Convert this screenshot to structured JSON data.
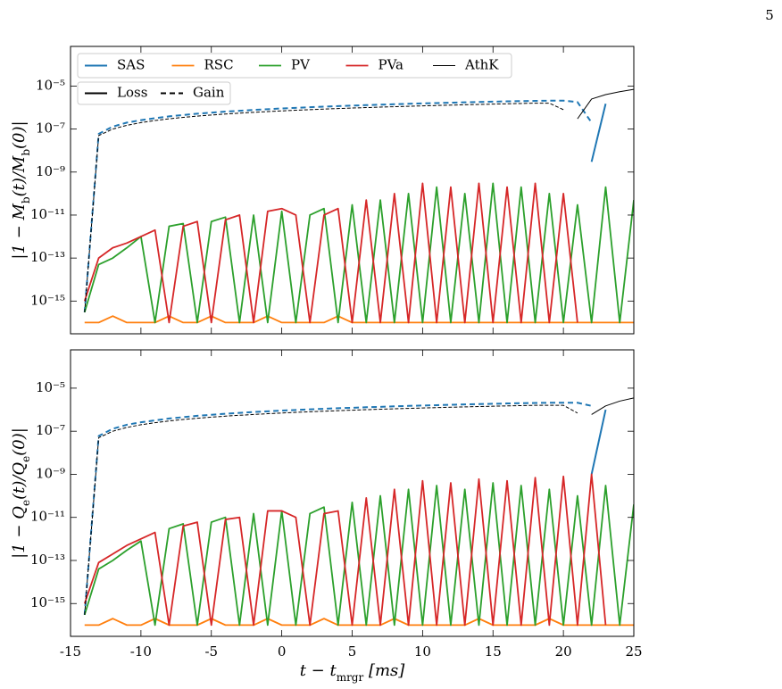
{
  "page_number": "5",
  "chart_data": [
    {
      "type": "line",
      "log_y": true,
      "xlim": [
        -15,
        25
      ],
      "xticks": [
        -15,
        -10,
        -5,
        0,
        5,
        10,
        15,
        20,
        25
      ],
      "show_xtick_labels": false,
      "ylim": [
        3e-17,
        0.0007
      ],
      "yticks": [
        {
          "value": 1e-15,
          "label": "10⁻¹⁵"
        },
        {
          "value": 1e-13,
          "label": "10⁻¹³"
        },
        {
          "value": 1e-11,
          "label": "10⁻¹¹"
        },
        {
          "value": 1e-09,
          "label": "10⁻⁹"
        },
        {
          "value": 1e-07,
          "label": "10⁻⁷"
        },
        {
          "value": 1e-05,
          "label": "10⁻⁵"
        }
      ],
      "ylabel": [
        "|1 − M",
        "b",
        "(t)/M",
        "b",
        "(0)|"
      ],
      "legend": "upper left",
      "style_legend": [
        {
          "name": "Loss",
          "dash": "solid"
        },
        {
          "name": "Gain",
          "dash": "dashed"
        }
      ],
      "x": [
        -14,
        -13,
        -12,
        -11,
        -10,
        -9,
        -8,
        -7,
        -6,
        -5,
        -4,
        -3,
        -2,
        -1,
        0,
        1,
        2,
        3,
        4,
        5,
        6,
        7,
        8,
        9,
        10,
        11,
        12,
        13,
        14,
        15,
        16,
        17,
        18,
        19,
        20,
        21,
        22,
        23,
        24,
        25
      ],
      "series": [
        {
          "name": "SAS",
          "color": "#1f77b4",
          "width": 2,
          "values": [
            3e-16,
            6e-08,
            1.3e-07,
            2e-07,
            2.6e-07,
            3.2e-07,
            3.9e-07,
            4.5e-07,
            5.2e-07,
            5.8e-07,
            6.5e-07,
            7.1e-07,
            7.8e-07,
            8.4e-07,
            9.1e-07,
            9.7e-07,
            1.04e-06,
            1.1e-06,
            1.17e-06,
            1.23e-06,
            1.3e-06,
            1.36e-06,
            1.43e-06,
            1.5e-06,
            1.56e-06,
            1.62e-06,
            1.69e-06,
            1.75e-06,
            1.82e-06,
            1.88e-06,
            1.95e-06,
            2e-06,
            2.05e-06,
            2.1e-06,
            2.1e-06,
            1.8e-06,
            2e-07,
            null,
            null,
            null
          ],
          "loss_values": [
            null,
            null,
            null,
            null,
            null,
            null,
            null,
            null,
            null,
            null,
            null,
            null,
            null,
            null,
            null,
            null,
            null,
            null,
            null,
            null,
            null,
            null,
            null,
            null,
            null,
            null,
            null,
            null,
            null,
            null,
            null,
            null,
            null,
            null,
            null,
            null,
            3e-09,
            1.5e-06,
            null,
            null
          ]
        },
        {
          "name": "RSC",
          "color": "#ff7f0e",
          "width": 1.8,
          "values": [
            1e-16,
            1e-16,
            2e-16,
            1e-16,
            1e-16,
            1e-16,
            2e-16,
            1e-16,
            1e-16,
            2e-16,
            1e-16,
            1e-16,
            1e-16,
            2e-16,
            1e-16,
            1e-16,
            1e-16,
            1e-16,
            2e-16,
            1e-16,
            1e-16,
            1e-16,
            1e-16,
            1e-16,
            1e-16,
            1e-16,
            1e-16,
            1e-16,
            1e-16,
            1e-16,
            1e-16,
            1e-16,
            1e-16,
            1e-16,
            1e-16,
            1e-16,
            1e-16,
            1e-16,
            1e-16,
            1e-16
          ]
        },
        {
          "name": "PV",
          "color": "#2ca02c",
          "width": 1.8,
          "values": [
            3e-16,
            5e-14,
            1e-13,
            3e-13,
            1e-12,
            1e-16,
            3e-12,
            4e-12,
            1e-16,
            5e-12,
            8e-12,
            1e-16,
            1e-11,
            1e-16,
            1.5e-11,
            1e-16,
            1e-11,
            2e-11,
            1e-16,
            3e-11,
            1e-16,
            5e-11,
            1e-16,
            1e-10,
            1e-16,
            2e-10,
            1e-16,
            1e-10,
            1e-16,
            3e-10,
            1e-16,
            2e-10,
            1e-16,
            1e-10,
            1e-16,
            3e-11,
            1e-16,
            2e-10,
            1e-16,
            5e-11
          ]
        },
        {
          "name": "PVa",
          "color": "#d62728",
          "width": 1.8,
          "values": [
            1e-15,
            1e-13,
            3e-13,
            5e-13,
            1e-12,
            2e-12,
            1e-16,
            3e-12,
            5e-12,
            1e-16,
            6e-12,
            1e-11,
            1e-16,
            1.5e-11,
            2e-11,
            1e-11,
            1e-16,
            1e-11,
            2e-11,
            1e-16,
            5e-11,
            1e-16,
            1e-10,
            1e-16,
            3e-10,
            1e-16,
            2e-10,
            1e-16,
            3e-10,
            1e-16,
            2e-10,
            1e-16,
            3e-10,
            1e-16,
            1e-10,
            1e-16,
            null,
            null,
            null,
            null
          ]
        },
        {
          "name": "AthK",
          "color": "#000000",
          "width": 1,
          "values": [
            3e-16,
            5e-08,
            1e-07,
            1.5e-07,
            2e-07,
            2.5e-07,
            3e-07,
            3.5e-07,
            4e-07,
            4.5e-07,
            5e-07,
            5.5e-07,
            6e-07,
            6.5e-07,
            7e-07,
            7.5e-07,
            8e-07,
            8.5e-07,
            9e-07,
            9.5e-07,
            1e-06,
            1.05e-06,
            1.1e-06,
            1.15e-06,
            1.2e-06,
            1.25e-06,
            1.3e-06,
            1.35e-06,
            1.4e-06,
            1.45e-06,
            1.5e-06,
            1.55e-06,
            1.6e-06,
            1.6e-06,
            8e-07,
            null,
            null,
            null,
            null,
            null
          ],
          "loss_values": [
            null,
            null,
            null,
            null,
            null,
            null,
            null,
            null,
            null,
            null,
            null,
            null,
            null,
            null,
            null,
            null,
            null,
            null,
            null,
            null,
            null,
            null,
            null,
            null,
            null,
            null,
            null,
            null,
            null,
            null,
            null,
            null,
            null,
            null,
            null,
            3e-07,
            2.5e-06,
            4e-06,
            5.5e-06,
            7e-06
          ]
        }
      ]
    },
    {
      "type": "line",
      "log_y": true,
      "xlim": [
        -15,
        25
      ],
      "xticks": [
        -15,
        -10,
        -5,
        0,
        5,
        10,
        15,
        20,
        25
      ],
      "show_xtick_labels": true,
      "ylim": [
        3e-17,
        0.0006
      ],
      "yticks": [
        {
          "value": 1e-15,
          "label": "10⁻¹⁵"
        },
        {
          "value": 1e-13,
          "label": "10⁻¹³"
        },
        {
          "value": 1e-11,
          "label": "10⁻¹¹"
        },
        {
          "value": 1e-09,
          "label": "10⁻⁹"
        },
        {
          "value": 1e-07,
          "label": "10⁻⁷"
        },
        {
          "value": 1e-05,
          "label": "10⁻⁵"
        }
      ],
      "ylabel": [
        "|1 − Q",
        "e",
        "(t)/Q",
        "e",
        "(0)|"
      ],
      "xlabel": [
        "t − t",
        "mrgr",
        " [ms]"
      ],
      "x": [
        -14,
        -13,
        -12,
        -11,
        -10,
        -9,
        -8,
        -7,
        -6,
        -5,
        -4,
        -3,
        -2,
        -1,
        0,
        1,
        2,
        3,
        4,
        5,
        6,
        7,
        8,
        9,
        10,
        11,
        12,
        13,
        14,
        15,
        16,
        17,
        18,
        19,
        20,
        21,
        22,
        23,
        24,
        25
      ],
      "series": [
        {
          "name": "SAS",
          "color": "#1f77b4",
          "width": 2,
          "values": [
            3e-16,
            6e-08,
            1.3e-07,
            2e-07,
            2.6e-07,
            3.2e-07,
            3.9e-07,
            4.5e-07,
            5.2e-07,
            5.8e-07,
            6.5e-07,
            7.1e-07,
            7.8e-07,
            8.4e-07,
            9.1e-07,
            9.7e-07,
            1.04e-06,
            1.1e-06,
            1.17e-06,
            1.23e-06,
            1.3e-06,
            1.36e-06,
            1.43e-06,
            1.5e-06,
            1.56e-06,
            1.62e-06,
            1.69e-06,
            1.75e-06,
            1.82e-06,
            1.88e-06,
            1.95e-06,
            2e-06,
            2.05e-06,
            2.1e-06,
            2.1e-06,
            2.1e-06,
            1.5e-06,
            null,
            null,
            null
          ],
          "loss_values": [
            null,
            null,
            null,
            null,
            null,
            null,
            null,
            null,
            null,
            null,
            null,
            null,
            null,
            null,
            null,
            null,
            null,
            null,
            null,
            null,
            null,
            null,
            null,
            null,
            null,
            null,
            null,
            null,
            null,
            null,
            null,
            null,
            null,
            null,
            null,
            null,
            1e-09,
            1e-06,
            null,
            null
          ]
        },
        {
          "name": "RSC",
          "color": "#ff7f0e",
          "width": 1.8,
          "values": [
            1e-16,
            1e-16,
            2e-16,
            1e-16,
            1e-16,
            2e-16,
            1e-16,
            1e-16,
            1e-16,
            2e-16,
            1e-16,
            1e-16,
            1e-16,
            2e-16,
            1e-16,
            1e-16,
            1e-16,
            2e-16,
            1e-16,
            1e-16,
            1e-16,
            1e-16,
            2e-16,
            1e-16,
            1e-16,
            1e-16,
            1e-16,
            1e-16,
            2e-16,
            1e-16,
            1e-16,
            1e-16,
            1e-16,
            2e-16,
            1e-16,
            1e-16,
            1e-16,
            1e-16,
            1e-16,
            1e-16
          ]
        },
        {
          "name": "PV",
          "color": "#2ca02c",
          "width": 1.8,
          "values": [
            3e-16,
            4e-14,
            1e-13,
            3e-13,
            8e-13,
            1e-16,
            3e-12,
            5e-12,
            1e-16,
            6e-12,
            1e-11,
            1e-16,
            1.5e-11,
            1e-16,
            2e-11,
            1e-16,
            1.5e-11,
            3e-11,
            1e-16,
            5e-11,
            1e-16,
            1e-10,
            1e-16,
            2e-10,
            1e-16,
            3e-10,
            1e-16,
            2e-10,
            1e-16,
            4e-10,
            1e-16,
            3e-10,
            1e-16,
            2e-10,
            1e-16,
            1e-10,
            1e-16,
            3e-10,
            1e-16,
            4e-11
          ]
        },
        {
          "name": "PVa",
          "color": "#d62728",
          "width": 1.8,
          "values": [
            1e-15,
            8e-14,
            2e-13,
            5e-13,
            1e-12,
            2e-12,
            1e-16,
            4e-12,
            6e-12,
            1e-16,
            8e-12,
            1e-11,
            1e-16,
            2e-11,
            2e-11,
            1e-11,
            1e-16,
            1.5e-11,
            2e-11,
            1e-16,
            8e-11,
            1e-16,
            2e-10,
            1e-16,
            5e-10,
            1e-16,
            4e-10,
            1e-16,
            6e-10,
            1e-16,
            5e-10,
            1e-16,
            7e-10,
            1e-16,
            8e-10,
            1e-16,
            1e-09,
            1e-16,
            null,
            null
          ]
        },
        {
          "name": "AthK",
          "color": "#000000",
          "width": 1,
          "values": [
            3e-16,
            5e-08,
            1e-07,
            1.5e-07,
            2e-07,
            2.5e-07,
            3e-07,
            3.5e-07,
            4e-07,
            4.5e-07,
            5e-07,
            5.5e-07,
            6e-07,
            6.5e-07,
            7e-07,
            7.5e-07,
            8e-07,
            8.5e-07,
            9e-07,
            9.5e-07,
            1e-06,
            1.05e-06,
            1.1e-06,
            1.15e-06,
            1.2e-06,
            1.25e-06,
            1.3e-06,
            1.35e-06,
            1.4e-06,
            1.45e-06,
            1.5e-06,
            1.55e-06,
            1.6e-06,
            1.6e-06,
            1.6e-06,
            7e-07,
            null,
            null,
            null,
            null
          ],
          "loss_values": [
            null,
            null,
            null,
            null,
            null,
            null,
            null,
            null,
            null,
            null,
            null,
            null,
            null,
            null,
            null,
            null,
            null,
            null,
            null,
            null,
            null,
            null,
            null,
            null,
            null,
            null,
            null,
            null,
            null,
            null,
            null,
            null,
            null,
            null,
            null,
            null,
            6e-07,
            1.5e-06,
            2.5e-06,
            3.5e-06
          ]
        }
      ]
    }
  ]
}
